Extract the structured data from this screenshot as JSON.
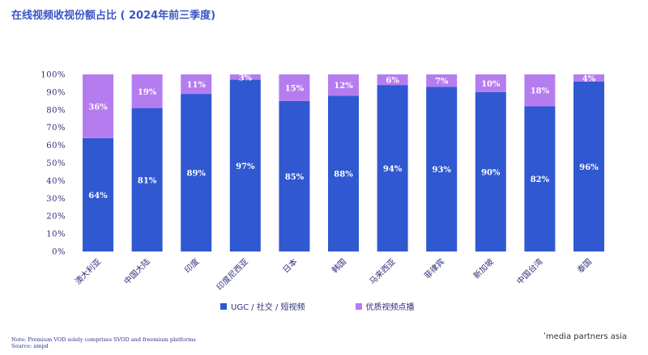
{
  "title": "在线视频收视份额占比 ( 2024年前三季度)",
  "chart_data": {
    "type": "bar",
    "stacked": true,
    "categories": [
      "澳大利亚",
      "中国大陆",
      "印度",
      "印度尼西亚",
      "日本",
      "韩国",
      "马来西亚",
      "菲律宾",
      "新加坡",
      "中国台湾",
      "泰国"
    ],
    "series": [
      {
        "name": "UGC / 社交 / 短视频",
        "color": "#2f58d1",
        "values": [
          64,
          81,
          89,
          97,
          85,
          88,
          94,
          93,
          90,
          82,
          96
        ]
      },
      {
        "name": "优质视频点播",
        "color": "#b57cf0",
        "values": [
          36,
          19,
          11,
          3,
          15,
          12,
          6,
          7,
          10,
          18,
          4
        ]
      }
    ],
    "y_ticks": [
      "0%",
      "10%",
      "20%",
      "30%",
      "40%",
      "50%",
      "60%",
      "70%",
      "80%",
      "90%",
      "100%"
    ],
    "ylim": [
      0,
      100
    ],
    "legend": "bottom-center",
    "grid": false
  },
  "legend": {
    "ugc_label": "UGC / 社交 / 短视频",
    "premium_label": "优质视频点播"
  },
  "footer": {
    "note": "Note: Premium VOD solely comprises SVOD and freemium platforms",
    "source": "Source: ampd",
    "brand": "ʹmedia partners asia"
  }
}
